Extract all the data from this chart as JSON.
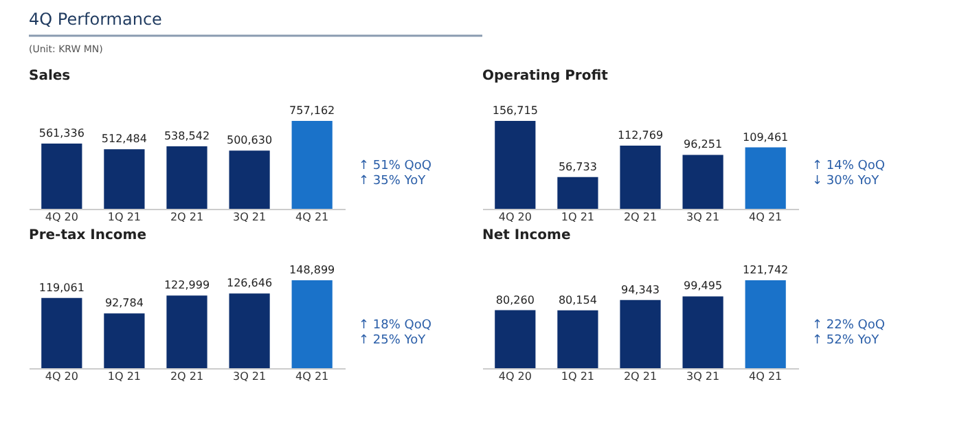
{
  "chart_data": [
    {
      "type": "other",
      "title": "4Q Performance",
      "annotations": [
        "(Unit: KRW MN)"
      ]
    },
    {
      "type": "bar",
      "title": "Sales",
      "categories": [
        "4Q 20",
        "1Q 21",
        "2Q 21",
        "3Q 21",
        "4Q 21"
      ],
      "values": [
        561336,
        512484,
        538542,
        500630,
        757162
      ],
      "value_labels": [
        "561,336",
        "512,484",
        "538,542",
        "500,630",
        "757,162"
      ],
      "colors": [
        "#0d2f6e",
        "#0d2f6e",
        "#0d2f6e",
        "#0d2f6e",
        "#1a72c9"
      ],
      "grid": false,
      "annotations": [
        "↑ 51% QoQ",
        "↑ 35% YoY"
      ]
    },
    {
      "type": "bar",
      "title": "Operating Profit",
      "categories": [
        "4Q 20",
        "1Q 21",
        "2Q 21",
        "3Q 21",
        "4Q 21"
      ],
      "values": [
        156715,
        56733,
        112769,
        96251,
        109461
      ],
      "value_labels": [
        "156,715",
        "56,733",
        "112,769",
        "96,251",
        "109,461"
      ],
      "colors": [
        "#0d2f6e",
        "#0d2f6e",
        "#0d2f6e",
        "#0d2f6e",
        "#1a72c9"
      ],
      "grid": false,
      "annotations": [
        "↑ 14% QoQ",
        "↓ 30% YoY"
      ]
    },
    {
      "type": "bar",
      "title": "Pre-tax Income",
      "categories": [
        "4Q 20",
        "1Q 21",
        "2Q 21",
        "3Q 21",
        "4Q 21"
      ],
      "values": [
        119061,
        92784,
        122999,
        126646,
        148899
      ],
      "value_labels": [
        "119,061",
        "92,784",
        "122,999",
        "126,646",
        "148,899"
      ],
      "colors": [
        "#0d2f6e",
        "#0d2f6e",
        "#0d2f6e",
        "#0d2f6e",
        "#1a72c9"
      ],
      "grid": false,
      "annotations": [
        "↑ 18% QoQ",
        "↑ 25% YoY"
      ]
    },
    {
      "type": "bar",
      "title": "Net Income",
      "categories": [
        "4Q 20",
        "1Q 21",
        "2Q 21",
        "3Q 21",
        "4Q 21"
      ],
      "values": [
        80260,
        80154,
        94343,
        99495,
        121742
      ],
      "value_labels": [
        "80,260",
        "80,154",
        "94,343",
        "99,495",
        "121,742"
      ],
      "colors": [
        "#0d2f6e",
        "#0d2f6e",
        "#0d2f6e",
        "#0d2f6e",
        "#1a72c9"
      ],
      "grid": false,
      "annotations": [
        "↑ 22% QoQ",
        "↑ 52% YoY"
      ]
    }
  ]
}
